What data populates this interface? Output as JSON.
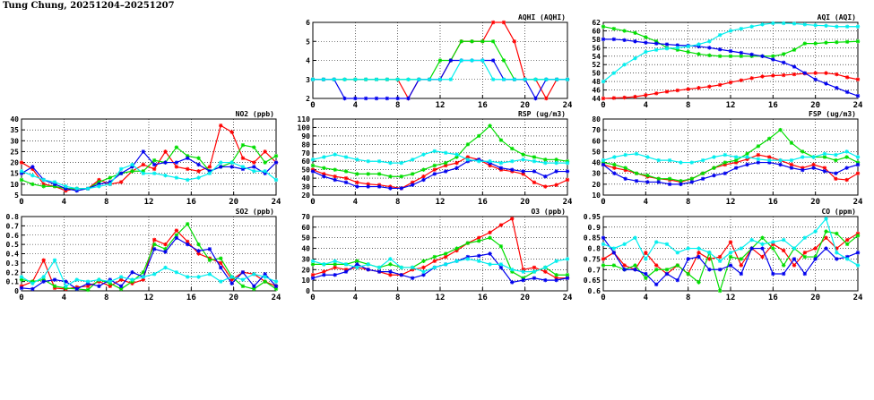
{
  "page": {
    "title": "Tung Chung, 20251204–20251207"
  },
  "colors": {
    "series1": "#ff0000",
    "series2": "#00dd00",
    "series3": "#0000ee",
    "series4": "#00eeee"
  },
  "chart_data": [
    {
      "type": "line",
      "title": "NO2 (ppb)",
      "xlim": [
        0,
        24
      ],
      "ylim": [
        5,
        40
      ],
      "xticks": [
        0,
        4,
        8,
        12,
        16,
        20,
        24
      ],
      "yticks": [
        5,
        10,
        15,
        20,
        25,
        30,
        35,
        40
      ],
      "grid": true,
      "series": [
        {
          "color": "#ff0000",
          "values": [
            20,
            17,
            10,
            9,
            7,
            8,
            8,
            12,
            10,
            11,
            16,
            19,
            17,
            25,
            18,
            17,
            16,
            18,
            37,
            34,
            22,
            20,
            25,
            20
          ]
        },
        {
          "color": "#00dd00",
          "values": [
            12,
            10,
            9,
            9,
            8,
            8,
            8,
            11,
            13,
            15,
            16,
            16,
            21,
            20,
            27,
            23,
            22,
            16,
            18,
            20,
            28,
            27,
            20,
            23
          ]
        },
        {
          "color": "#0000ee",
          "values": [
            15,
            18,
            12,
            10,
            8,
            7,
            8,
            10,
            11,
            15,
            18,
            25,
            19,
            20,
            20,
            22,
            19,
            16,
            18,
            18,
            17,
            18,
            15,
            20
          ]
        },
        {
          "color": "#00eeee",
          "values": [
            16,
            14,
            12,
            11,
            9,
            8,
            8,
            9,
            10,
            17,
            19,
            15,
            15,
            14,
            13,
            12,
            13,
            15,
            20,
            20,
            18,
            16,
            16,
            12
          ]
        }
      ]
    },
    {
      "type": "line",
      "title": "SO2 (ppb)",
      "xlim": [
        0,
        24
      ],
      "ylim": [
        0,
        0.8
      ],
      "xticks": [
        0,
        4,
        8,
        12,
        16,
        20,
        24
      ],
      "yticks": [
        0,
        0.1,
        0.2,
        0.3,
        0.4,
        0.5,
        0.6,
        0.7,
        0.8
      ],
      "grid": true,
      "series": [
        {
          "color": "#ff0000",
          "values": [
            0.05,
            0.1,
            0.33,
            0.03,
            0.02,
            0.04,
            0.05,
            0.1,
            0.05,
            0.12,
            0.08,
            0.12,
            0.55,
            0.5,
            0.65,
            0.53,
            0.4,
            0.35,
            0.3,
            0.12,
            0.2,
            0.18,
            0.1,
            0.05
          ]
        },
        {
          "color": "#00dd00",
          "values": [
            0.12,
            0.1,
            0.12,
            0.05,
            0.03,
            0.02,
            0.01,
            0.12,
            0.08,
            0.02,
            0.1,
            0.2,
            0.5,
            0.45,
            0.6,
            0.72,
            0.5,
            0.33,
            0.35,
            0.15,
            0.05,
            0.02,
            0.1,
            0.02
          ]
        },
        {
          "color": "#0000ee",
          "values": [
            0.03,
            0.02,
            0.1,
            0.12,
            0.1,
            0.02,
            0.08,
            0.05,
            0.12,
            0.05,
            0.2,
            0.15,
            0.45,
            0.42,
            0.57,
            0.5,
            0.43,
            0.45,
            0.25,
            0.08,
            0.2,
            0.05,
            0.18,
            0.05
          ]
        },
        {
          "color": "#00eeee",
          "values": [
            0.15,
            0.08,
            0.15,
            0.33,
            0.05,
            0.12,
            0.1,
            0.12,
            0.1,
            0.15,
            0.12,
            0.15,
            0.18,
            0.25,
            0.2,
            0.15,
            0.15,
            0.18,
            0.1,
            0.15,
            0.12,
            0.18,
            0.15,
            0.1
          ]
        }
      ]
    },
    {
      "type": "line",
      "title": "AQHI (AQHI)",
      "xlim": [
        0,
        24
      ],
      "ylim": [
        2,
        6
      ],
      "xticks": [
        0,
        4,
        8,
        12,
        16,
        20,
        24
      ],
      "yticks": [
        2,
        3,
        4,
        5,
        6
      ],
      "grid": true,
      "series": [
        {
          "color": "#ff0000",
          "values": [
            3,
            3,
            3,
            3,
            3,
            3,
            3,
            3,
            3,
            2,
            3,
            3,
            3,
            4,
            5,
            5,
            5,
            6,
            6,
            5,
            3,
            3,
            2,
            3,
            3
          ]
        },
        {
          "color": "#00dd00",
          "values": [
            3,
            3,
            3,
            3,
            3,
            3,
            3,
            3,
            3,
            3,
            3,
            3,
            4,
            4,
            5,
            5,
            5,
            5,
            4,
            3,
            3,
            3,
            3,
            3,
            3
          ]
        },
        {
          "color": "#0000ee",
          "values": [
            3,
            3,
            3,
            2,
            2,
            2,
            2,
            2,
            2,
            2,
            3,
            3,
            3,
            4,
            4,
            4,
            4,
            4,
            3,
            3,
            3,
            2,
            3,
            3,
            3
          ]
        },
        {
          "color": "#00eeee",
          "values": [
            3,
            3,
            3,
            3,
            3,
            3,
            3,
            3,
            3,
            3,
            3,
            3,
            3,
            3,
            4,
            4,
            4,
            3,
            3,
            3,
            3,
            3,
            3,
            3,
            3
          ]
        }
      ]
    },
    {
      "type": "line",
      "title": "RSP (ug/m3)",
      "xlim": [
        0,
        24
      ],
      "ylim": [
        20,
        110
      ],
      "xticks": [
        0,
        4,
        8,
        12,
        16,
        20,
        24
      ],
      "yticks": [
        20,
        30,
        40,
        50,
        60,
        70,
        80,
        90,
        100,
        110
      ],
      "grid": true,
      "series": [
        {
          "color": "#ff0000",
          "values": [
            50,
            45,
            42,
            40,
            35,
            33,
            32,
            30,
            28,
            35,
            42,
            50,
            55,
            58,
            65,
            62,
            55,
            50,
            48,
            45,
            35,
            30,
            32,
            38
          ]
        },
        {
          "color": "#00dd00",
          "values": [
            55,
            52,
            50,
            48,
            45,
            45,
            45,
            42,
            42,
            45,
            50,
            55,
            58,
            65,
            80,
            90,
            102,
            85,
            75,
            68,
            65,
            62,
            62,
            60
          ]
        },
        {
          "color": "#0000ee",
          "values": [
            48,
            42,
            38,
            35,
            30,
            30,
            30,
            28,
            28,
            32,
            38,
            45,
            48,
            52,
            60,
            62,
            58,
            52,
            50,
            48,
            48,
            42,
            48,
            48
          ]
        },
        {
          "color": "#00eeee",
          "values": [
            62,
            65,
            68,
            65,
            62,
            60,
            60,
            58,
            58,
            62,
            68,
            72,
            70,
            68,
            62,
            60,
            60,
            58,
            60,
            62,
            60,
            58,
            58,
            58
          ]
        }
      ]
    },
    {
      "type": "line",
      "title": "O3 (ppb)",
      "xlim": [
        0,
        24
      ],
      "ylim": [
        0,
        70
      ],
      "xticks": [
        0,
        4,
        8,
        12,
        16,
        20,
        24
      ],
      "yticks": [
        0,
        10,
        20,
        30,
        40,
        50,
        60,
        70
      ],
      "grid": true,
      "series": [
        {
          "color": "#ff0000",
          "values": [
            15,
            18,
            22,
            20,
            22,
            20,
            18,
            15,
            15,
            20,
            22,
            28,
            32,
            38,
            45,
            50,
            55,
            62,
            68,
            20,
            22,
            18,
            12,
            12
          ]
        },
        {
          "color": "#00dd00",
          "values": [
            25,
            25,
            25,
            25,
            28,
            25,
            22,
            25,
            22,
            22,
            28,
            32,
            35,
            40,
            45,
            47,
            50,
            42,
            18,
            12,
            18,
            22,
            15,
            15
          ]
        },
        {
          "color": "#0000ee",
          "values": [
            12,
            15,
            15,
            18,
            25,
            20,
            18,
            18,
            15,
            12,
            15,
            22,
            25,
            28,
            32,
            33,
            35,
            22,
            8,
            10,
            12,
            10,
            10,
            12
          ]
        },
        {
          "color": "#00eeee",
          "values": [
            28,
            25,
            28,
            25,
            22,
            25,
            22,
            30,
            22,
            22,
            18,
            22,
            25,
            28,
            30,
            28,
            25,
            25,
            20,
            18,
            18,
            22,
            28,
            30
          ]
        }
      ]
    },
    {
      "type": "line",
      "title": "AQI (AQI)",
      "xlim": [
        0,
        24
      ],
      "ylim": [
        44,
        62
      ],
      "xticks": [
        0,
        4,
        8,
        12,
        16,
        20,
        24
      ],
      "yticks": [
        44,
        46,
        48,
        50,
        52,
        54,
        56,
        58,
        60,
        62
      ],
      "grid": true,
      "series": [
        {
          "color": "#ff0000",
          "values": [
            44,
            44.1,
            44.2,
            44.4,
            44.8,
            45.2,
            45.6,
            45.9,
            46.2,
            46.5,
            46.8,
            47.2,
            47.8,
            48.3,
            48.8,
            49.2,
            49.4,
            49.5,
            49.7,
            49.9,
            50,
            50,
            49.7,
            49,
            48.5
          ]
        },
        {
          "color": "#00dd00",
          "values": [
            61,
            60.5,
            60,
            59.5,
            58.5,
            57.5,
            56,
            55.5,
            55,
            54.5,
            54.2,
            54,
            54,
            54,
            54,
            54,
            54,
            54.5,
            55.5,
            57,
            57,
            57.2,
            57.3,
            57.4,
            57.5
          ]
        },
        {
          "color": "#0000ee",
          "values": [
            58,
            58,
            57.8,
            57.5,
            57.2,
            57,
            56.8,
            56.6,
            56.5,
            56.3,
            56,
            55.6,
            55.2,
            54.8,
            54.4,
            54,
            53.2,
            52.5,
            51.5,
            50,
            48.5,
            47.5,
            46.5,
            45.5,
            44.6
          ]
        },
        {
          "color": "#00eeee",
          "values": [
            48,
            50,
            52,
            53.5,
            55,
            55.5,
            55.8,
            56,
            56.3,
            56.8,
            57.5,
            59,
            60,
            60.5,
            61,
            61.5,
            61.8,
            61.8,
            61.7,
            61.5,
            61.3,
            61.2,
            61,
            61,
            61
          ]
        }
      ]
    },
    {
      "type": "line",
      "title": "FSP (ug/m3)",
      "xlim": [
        0,
        24
      ],
      "ylim": [
        10,
        80
      ],
      "xticks": [
        0,
        4,
        8,
        12,
        16,
        20,
        24
      ],
      "yticks": [
        10,
        20,
        30,
        40,
        50,
        60,
        70,
        80
      ],
      "grid": true,
      "series": [
        {
          "color": "#ff0000",
          "values": [
            38,
            35,
            33,
            30,
            27,
            25,
            24,
            22,
            25,
            30,
            35,
            38,
            40,
            43,
            47,
            45,
            42,
            38,
            35,
            38,
            35,
            25,
            24,
            30
          ]
        },
        {
          "color": "#00dd00",
          "values": [
            40,
            38,
            35,
            30,
            28,
            25,
            25,
            23,
            25,
            30,
            35,
            40,
            42,
            48,
            55,
            62,
            70,
            58,
            50,
            45,
            45,
            42,
            45,
            40
          ]
        },
        {
          "color": "#0000ee",
          "values": [
            38,
            30,
            25,
            23,
            22,
            22,
            20,
            20,
            22,
            25,
            28,
            30,
            35,
            38,
            40,
            40,
            38,
            35,
            33,
            35,
            32,
            30,
            35,
            38
          ]
        },
        {
          "color": "#00eeee",
          "values": [
            42,
            45,
            47,
            48,
            45,
            42,
            42,
            40,
            40,
            42,
            45,
            47,
            45,
            45,
            43,
            42,
            42,
            42,
            45,
            45,
            48,
            47,
            50,
            45
          ]
        }
      ]
    },
    {
      "type": "line",
      "title": "CO (ppm)",
      "xlim": [
        0,
        24
      ],
      "ylim": [
        0.6,
        0.95
      ],
      "xticks": [
        0,
        4,
        8,
        12,
        16,
        20,
        24
      ],
      "yticks": [
        0.6,
        0.65,
        0.7,
        0.75,
        0.8,
        0.85,
        0.9,
        0.95
      ],
      "grid": true,
      "series": [
        {
          "color": "#ff0000",
          "values": [
            0.75,
            0.78,
            0.72,
            0.7,
            0.78,
            0.72,
            0.68,
            0.72,
            0.68,
            0.78,
            0.75,
            0.76,
            0.83,
            0.72,
            0.8,
            0.76,
            0.82,
            0.79,
            0.72,
            0.78,
            0.8,
            0.85,
            0.8,
            0.84,
            0.87
          ]
        },
        {
          "color": "#00dd00",
          "values": [
            0.72,
            0.72,
            0.7,
            0.72,
            0.66,
            0.7,
            0.7,
            0.72,
            0.68,
            0.64,
            0.78,
            0.6,
            0.76,
            0.75,
            0.8,
            0.85,
            0.8,
            0.72,
            0.8,
            0.76,
            0.76,
            0.88,
            0.87,
            0.82,
            0.86
          ]
        },
        {
          "color": "#0000ee",
          "values": [
            0.85,
            0.78,
            0.7,
            0.7,
            0.68,
            0.63,
            0.68,
            0.65,
            0.75,
            0.76,
            0.7,
            0.7,
            0.72,
            0.68,
            0.8,
            0.8,
            0.68,
            0.68,
            0.75,
            0.68,
            0.75,
            0.8,
            0.75,
            0.76,
            0.78
          ]
        },
        {
          "color": "#00eeee",
          "values": [
            0.82,
            0.8,
            0.82,
            0.85,
            0.75,
            0.83,
            0.82,
            0.78,
            0.8,
            0.8,
            0.78,
            0.74,
            0.78,
            0.8,
            0.84,
            0.82,
            0.83,
            0.84,
            0.8,
            0.85,
            0.88,
            0.94,
            0.78,
            0.75,
            0.72
          ]
        }
      ]
    }
  ]
}
